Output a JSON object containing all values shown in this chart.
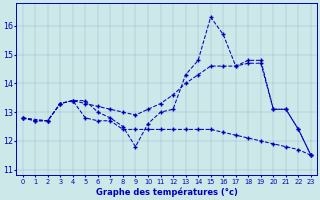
{
  "xlabel": "Graphe des températures (°c)",
  "background_color": "#cce8e8",
  "line_color": "#0000bb",
  "xlim": [
    -0.5,
    23.5
  ],
  "ylim": [
    10.8,
    16.8
  ],
  "x_ticks": [
    0,
    1,
    2,
    3,
    4,
    5,
    6,
    7,
    8,
    9,
    10,
    11,
    12,
    13,
    14,
    15,
    16,
    17,
    18,
    19,
    20,
    21,
    22,
    23
  ],
  "y_ticks": [
    11,
    12,
    13,
    14,
    15,
    16
  ],
  "series": [
    {
      "x": [
        0,
        1,
        2,
        3,
        4,
        5,
        6,
        7,
        8,
        9,
        10,
        11,
        12,
        13,
        14,
        15,
        16,
        17,
        18,
        19,
        20,
        21,
        22,
        23
      ],
      "y": [
        12.8,
        12.7,
        12.7,
        13.3,
        13.4,
        13.3,
        13.2,
        13.1,
        13.0,
        12.9,
        13.1,
        13.3,
        13.6,
        14.0,
        14.3,
        14.6,
        14.6,
        14.6,
        14.7,
        14.7,
        13.1,
        13.1,
        12.4,
        11.5
      ]
    },
    {
      "x": [
        0,
        2,
        3,
        4,
        5,
        6,
        7,
        8,
        9,
        10,
        11,
        12,
        13,
        14,
        15,
        16,
        17,
        18,
        19,
        20,
        21,
        22,
        23
      ],
      "y": [
        12.8,
        12.7,
        13.3,
        13.4,
        13.4,
        13.0,
        12.8,
        12.5,
        11.8,
        12.6,
        13.0,
        13.1,
        14.3,
        14.8,
        16.3,
        15.7,
        14.6,
        14.8,
        14.8,
        13.1,
        13.1,
        12.4,
        11.5
      ]
    },
    {
      "x": [
        0,
        1,
        2,
        3,
        4,
        5,
        6,
        7,
        8,
        9,
        10,
        11,
        12,
        13,
        14,
        15,
        16,
        17,
        18,
        19,
        20,
        21,
        22,
        23
      ],
      "y": [
        12.8,
        12.7,
        12.7,
        13.3,
        13.4,
        12.8,
        12.7,
        12.7,
        12.4,
        12.4,
        12.4,
        12.4,
        12.4,
        12.4,
        12.4,
        12.4,
        12.3,
        12.2,
        12.1,
        12.0,
        11.9,
        11.8,
        11.7,
        11.5
      ]
    }
  ]
}
